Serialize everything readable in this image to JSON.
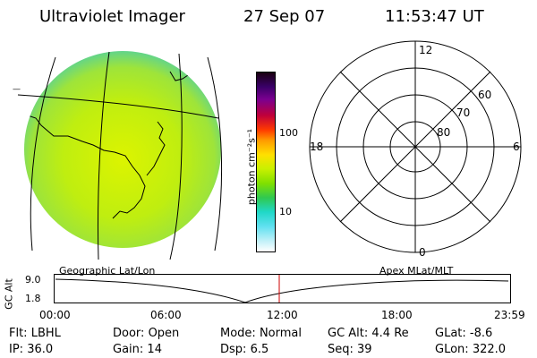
{
  "header": {
    "instrument": "Ultraviolet Imager",
    "date": "27 Sep 07",
    "time": "11:53:47 UT"
  },
  "colorbar": {
    "unit_label": "photon cm⁻²s⁻¹",
    "ticks": [
      "100",
      "10"
    ]
  },
  "polar": {
    "hour_labels": [
      "12",
      "18",
      "6",
      "0"
    ],
    "lat_labels": [
      "60",
      "70",
      "80"
    ]
  },
  "altitude": {
    "left_label": "Geographic Lat/Lon",
    "right_label": "Apex MLat/MLT",
    "axis_label": "GC Alt",
    "y_ticks": [
      "9.0",
      "1.8"
    ],
    "x_ticks": [
      "00:00",
      "06:00",
      "12:00",
      "18:00",
      "23:59"
    ]
  },
  "status": {
    "row1": [
      {
        "key": "Flt:",
        "value": "LBHL"
      },
      {
        "key": "Door:",
        "value": "Open"
      },
      {
        "key": "Mode:",
        "value": "Normal"
      },
      {
        "key": "GC Alt:",
        "value": "4.4 Re"
      },
      {
        "key": "GLat:",
        "value": "-8.6"
      }
    ],
    "row2": [
      {
        "key": "IP:",
        "value": "36.0"
      },
      {
        "key": "Gain:",
        "value": "14"
      },
      {
        "key": "Dsp:",
        "value": "6.5"
      },
      {
        "key": "Seq:",
        "value": "39"
      },
      {
        "key": "GLon:",
        "value": "322.0"
      }
    ]
  },
  "colors": {
    "image_fill": "#c6f000",
    "image_edge": "#66d28a",
    "marker": "#cc0000"
  }
}
